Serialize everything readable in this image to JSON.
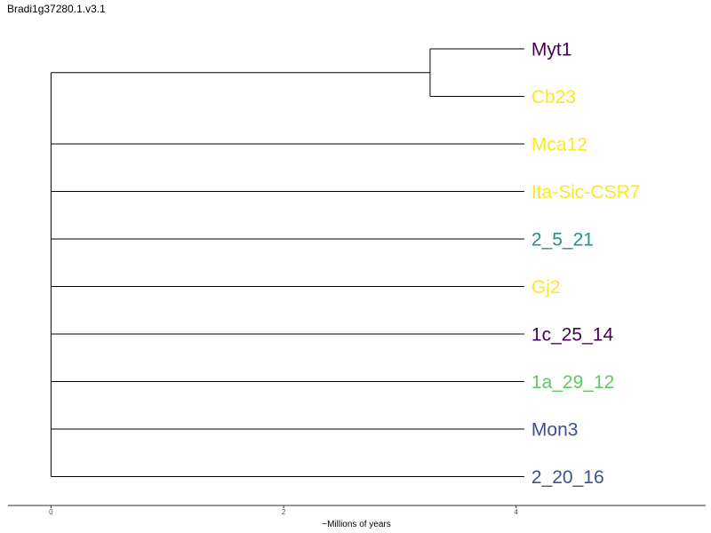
{
  "chart_data": {
    "type": "dendrogram",
    "title": "Bradi1g37280.1.v3.1",
    "xlabel": "~Millions of years",
    "xlim": [
      -0.37,
      5.63
    ],
    "xticks": [
      0,
      2,
      4
    ],
    "grid": false,
    "tips": [
      {
        "label": "Myt1",
        "color": "#440154"
      },
      {
        "label": "Cb23",
        "color": "#fde725"
      },
      {
        "label": "Mca12",
        "color": "#fde725"
      },
      {
        "label": "Ita-Sic-CSR7",
        "color": "#fde725"
      },
      {
        "label": "2_5_21",
        "color": "#21918c"
      },
      {
        "label": "Gj2",
        "color": "#fde725"
      },
      {
        "label": "1c_25_14",
        "color": "#440154"
      },
      {
        "label": "1a_29_12",
        "color": "#5ec962"
      },
      {
        "label": "Mon3",
        "color": "#3b528b"
      },
      {
        "label": "2_20_16",
        "color": "#3b528b"
      }
    ],
    "tip_height": 4.07,
    "root_age": 0,
    "internal_nodes": [
      {
        "name": "myt1-cb23-clade",
        "age": 3.26,
        "children": [
          "Myt1",
          "Cb23"
        ]
      }
    ]
  }
}
